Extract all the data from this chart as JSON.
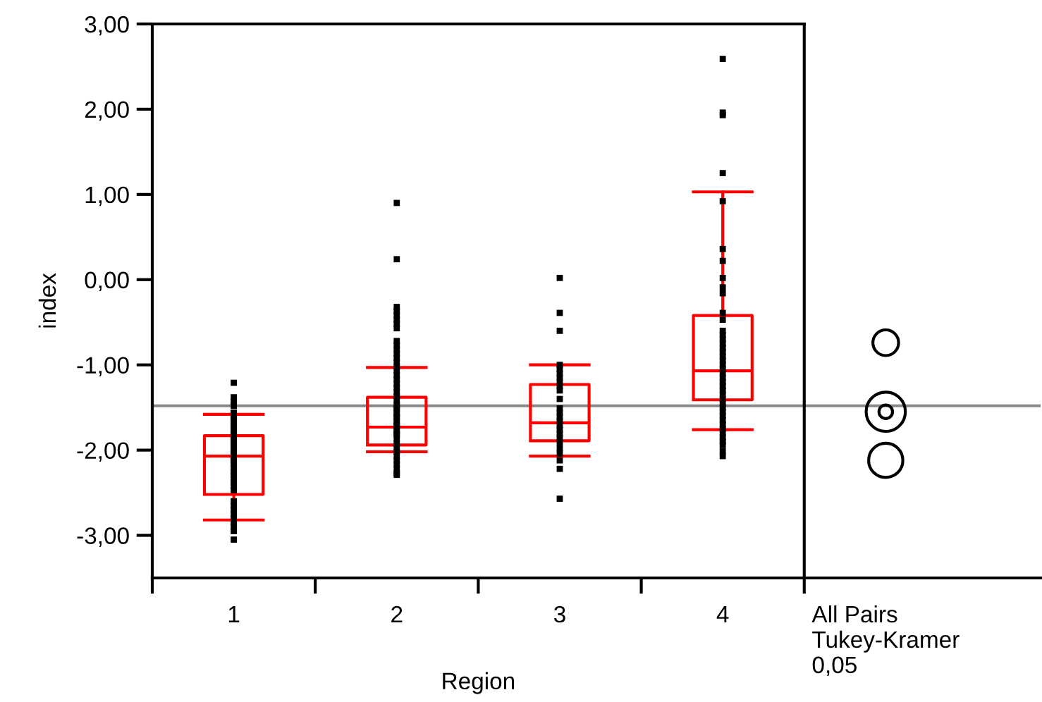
{
  "chart_data": {
    "type": "box",
    "xlabel": "Region",
    "ylabel": "index",
    "categories": [
      "1",
      "2",
      "3",
      "4",
      "All Pairs\nTukey-Kramer\n0,05"
    ],
    "series": [
      {
        "type": "box",
        "color": "#ff0000",
        "boxes": [
          {
            "low": -2.82,
            "q1": -2.52,
            "median": -2.07,
            "q3": -1.83,
            "high": -1.58
          },
          {
            "low": -2.02,
            "q1": -1.94,
            "median": -1.73,
            "q3": -1.38,
            "high": -1.03
          },
          {
            "low": -2.07,
            "q1": -1.89,
            "median": -1.68,
            "q3": -1.23,
            "high": -1.0
          },
          {
            "low": -1.76,
            "q1": -1.41,
            "median": -1.07,
            "q3": -0.42,
            "high": 1.03
          },
          null
        ]
      },
      {
        "type": "scatter",
        "color": "#000000",
        "marker": "square",
        "x": [
          "1",
          "1",
          "1",
          "1",
          "1",
          "1",
          "1",
          "1",
          "1",
          "1",
          "1",
          "1",
          "1",
          "1",
          "1",
          "1",
          "1",
          "1",
          "1",
          "1",
          "1",
          "1",
          "1",
          "1",
          "1",
          "1",
          "1",
          "1",
          "1",
          "1",
          "1",
          "1",
          "1",
          "1",
          "1",
          "1",
          "1",
          "1",
          "1",
          "1",
          "2",
          "2",
          "2",
          "2",
          "2",
          "2",
          "2",
          "2",
          "2",
          "2",
          "2",
          "2",
          "2",
          "2",
          "2",
          "2",
          "2",
          "2",
          "2",
          "2",
          "2",
          "2",
          "2",
          "2",
          "2",
          "2",
          "2",
          "2",
          "2",
          "2",
          "2",
          "2",
          "2",
          "2",
          "2",
          "2",
          "2",
          "2",
          "2",
          "2",
          "2",
          "2",
          "2",
          "2",
          "2",
          "3",
          "3",
          "3",
          "3",
          "3",
          "3",
          "3",
          "3",
          "3",
          "3",
          "3",
          "3",
          "3",
          "3",
          "3",
          "3",
          "3",
          "3",
          "3",
          "3",
          "3",
          "3",
          "3",
          "3",
          "3",
          "4",
          "4",
          "4",
          "4",
          "4",
          "4",
          "4",
          "4",
          "4",
          "4",
          "4",
          "4",
          "4",
          "4",
          "4",
          "4",
          "4",
          "4",
          "4",
          "4",
          "4",
          "4",
          "4",
          "4",
          "4",
          "4",
          "4",
          "4",
          "4",
          "4",
          "4",
          "4",
          "4",
          "4",
          "4",
          "4",
          "4",
          "4",
          "4",
          "4",
          "4",
          "4"
        ],
        "values": [
          -1.21,
          -1.38,
          -1.43,
          -1.48,
          -1.56,
          -1.61,
          -1.66,
          -1.71,
          -1.76,
          -1.81,
          -1.86,
          -1.91,
          -1.96,
          -2.01,
          -2.06,
          -2.11,
          -2.16,
          -2.21,
          -2.26,
          -2.29,
          -2.34,
          -2.38,
          -2.42,
          -2.47,
          -2.6,
          -2.65,
          -2.7,
          -2.75,
          -2.8,
          -2.85,
          -2.9,
          -2.95,
          -3.05,
          -1.58,
          -1.63,
          -1.73,
          -1.83,
          -1.93,
          -2.03,
          -2.13,
          0.9,
          0.24,
          -0.32,
          -0.37,
          -0.42,
          -0.47,
          -0.52,
          -0.57,
          -0.72,
          -0.77,
          -0.82,
          -0.87,
          -0.92,
          -0.97,
          -1.02,
          -1.07,
          -1.12,
          -1.17,
          -1.22,
          -1.27,
          -1.32,
          -1.37,
          -1.42,
          -1.47,
          -1.52,
          -1.57,
          -1.62,
          -1.67,
          -1.72,
          -1.77,
          -1.82,
          -1.87,
          -1.92,
          -1.97,
          -2.02,
          -2.07,
          -2.12,
          -2.17,
          -2.22,
          -2.27,
          -2.29,
          -1.5,
          -1.6,
          -1.7,
          -1.8,
          0.02,
          -0.39,
          -0.6,
          -1.0,
          -1.05,
          -1.1,
          -1.15,
          -1.2,
          -1.25,
          -1.3,
          -1.4,
          -1.51,
          -1.56,
          -1.61,
          -1.66,
          -1.71,
          -1.76,
          -1.81,
          -1.86,
          -1.91,
          -1.98,
          -2.04,
          -2.12,
          -2.22,
          -2.57,
          2.59,
          1.96,
          1.93,
          1.25,
          0.92,
          0.36,
          0.22,
          0.02,
          -0.09,
          -0.16,
          -0.39,
          -0.47,
          -0.6,
          -0.65,
          -0.7,
          -0.75,
          -0.8,
          -0.85,
          -0.9,
          -0.95,
          -1.0,
          -1.05,
          -1.1,
          -1.15,
          -1.2,
          -1.25,
          -1.3,
          -1.35,
          -1.4,
          -1.45,
          -1.5,
          -1.55,
          -1.6,
          -1.65,
          -1.7,
          -1.75,
          -1.8,
          -1.85,
          -1.9,
          -1.94,
          -2.01,
          -2.07
        ]
      },
      {
        "type": "bubble",
        "color": "#000000",
        "x": [
          "All Pairs\nTukey-Kramer\n0,05"
        ],
        "values": [
          -0.74
        ],
        "sizes": [
          0.43
        ]
      },
      {
        "type": "bubble",
        "color": "#000000",
        "x": [
          "All Pairs\nTukey-Kramer\n0,05"
        ],
        "values": [
          -1.55
        ],
        "sizes": [
          1
        ]
      },
      {
        "type": "bubble",
        "color": "#000000",
        "x": [
          "All Pairs\nTukey-Kramer\n0,05"
        ],
        "values": [
          -1.55
        ],
        "sizes": [
          0.12
        ]
      },
      {
        "type": "bubble",
        "color": "#000000",
        "x": [
          "All Pairs\nTukey-Kramer\n0,05"
        ],
        "values": [
          -2.12
        ],
        "sizes": [
          0.76
        ]
      }
    ],
    "ylim": [
      -3.5,
      3.0
    ],
    "yticks": [
      {
        "value": -3,
        "label": "-3,00"
      },
      {
        "value": -2,
        "label": "-2,00"
      },
      {
        "value": -1,
        "label": "-1,00"
      },
      {
        "value": 0,
        "label": "0,00"
      },
      {
        "value": 1,
        "label": "1,00"
      },
      {
        "value": 2,
        "label": "2,00"
      },
      {
        "value": 3,
        "label": "3,00"
      }
    ],
    "ref_lines": [
      {
        "axis": "y",
        "value": -1.48,
        "color": "#888888"
      }
    ],
    "grid": false
  }
}
